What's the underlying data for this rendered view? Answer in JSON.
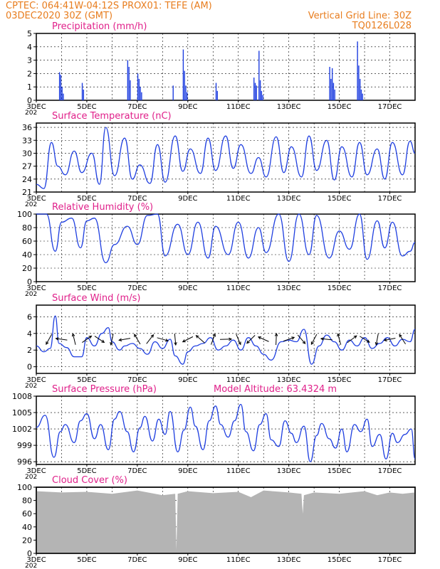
{
  "header": {
    "station": "CPTEC:   064:41W-04:12S   PROX01: TEFE (AM)",
    "date": "03DEC2020 30Z (GMT)",
    "grid_note": "Vertical Grid Line: 30Z",
    "run_code": "TQ0126L028"
  },
  "colors": {
    "header": "#e87d1e",
    "title": "#e0208a",
    "series": "#1f3fe0",
    "bars": "#1f3fe0",
    "cloud": "#b4b4b4",
    "axis": "#000000",
    "grid": "#000000"
  },
  "x_axis": {
    "range": [
      "03DEC",
      "18DEC"
    ],
    "tick_labels": [
      "3DEC",
      "5DEC",
      "7DEC",
      "9DEC",
      "11DEC",
      "13DEC",
      "15DEC",
      "17DEC"
    ],
    "clipped_year_label": "202"
  },
  "chart_data": [
    {
      "id": "precip",
      "type": "bar",
      "title": "Precipitation (mm/h)",
      "ylim": [
        0,
        5
      ],
      "yticks": [
        "0",
        "1",
        "2",
        "3",
        "4",
        "5"
      ],
      "grid": true,
      "events": [
        {
          "day": 3.9,
          "values": [
            2.1,
            1.9,
            1.0,
            0.5
          ]
        },
        {
          "day": 4.8,
          "values": [
            1.3,
            0.8
          ]
        },
        {
          "day": 6.6,
          "values": [
            3.0,
            2.5,
            1.5
          ]
        },
        {
          "day": 7.0,
          "values": [
            2.0,
            1.6,
            1.0,
            0.6
          ]
        },
        {
          "day": 8.4,
          "values": [
            1.1
          ]
        },
        {
          "day": 8.8,
          "values": [
            3.8,
            2.2,
            1.1,
            0.6
          ]
        },
        {
          "day": 10.1,
          "values": [
            1.3,
            0.7
          ]
        },
        {
          "day": 11.6,
          "values": [
            1.7,
            1.3,
            1.1
          ]
        },
        {
          "day": 11.8,
          "values": [
            3.7,
            1.5,
            0.7,
            0.4
          ]
        },
        {
          "day": 14.6,
          "values": [
            2.5,
            1.6,
            2.4,
            1.3,
            0.8
          ]
        },
        {
          "day": 15.7,
          "values": [
            4.4,
            2.6,
            1.6,
            0.8,
            0.5
          ]
        }
      ]
    },
    {
      "id": "temp",
      "type": "line",
      "title": "Surface Temperature (nC)",
      "ylim": [
        21,
        37
      ],
      "yticks": [
        "21",
        "24",
        "27",
        "30",
        "33",
        "36"
      ],
      "grid": true,
      "x": [
        3,
        3.3,
        3.6,
        3.85,
        4.15,
        4.5,
        4.8,
        5.2,
        5.5,
        5.75,
        6.1,
        6.5,
        6.8,
        7.1,
        7.5,
        7.8,
        8.1,
        8.5,
        8.8,
        9.1,
        9.5,
        9.8,
        10.1,
        10.5,
        10.8,
        11.1,
        11.5,
        11.8,
        12.1,
        12.5,
        12.8,
        13.1,
        13.5,
        13.8,
        14.1,
        14.5,
        14.8,
        15.1,
        15.5,
        15.8,
        16.1,
        16.5,
        16.8,
        17.1,
        17.5,
        17.8,
        18.0
      ],
      "values": [
        22.8,
        21.8,
        32.5,
        27,
        25,
        30.5,
        25.5,
        30,
        22.8,
        36,
        24.8,
        33.5,
        24,
        27.3,
        23,
        32,
        23.3,
        34,
        25.8,
        31,
        25.3,
        33.5,
        26,
        34,
        26.5,
        32,
        25.3,
        29,
        24.5,
        33.8,
        25.5,
        31.5,
        24.5,
        34,
        26,
        33,
        23.8,
        31.5,
        24.5,
        32.5,
        25,
        31,
        24,
        32.5,
        25,
        32.8,
        30
      ]
    },
    {
      "id": "rh",
      "type": "line",
      "title": "Relative Humidity (%)",
      "ylim": [
        0,
        100
      ],
      "yticks": [
        "0",
        "20",
        "40",
        "60",
        "80",
        "100"
      ],
      "grid": true,
      "x": [
        3,
        3.4,
        3.75,
        4.0,
        4.4,
        4.75,
        5.0,
        5.3,
        5.75,
        6.1,
        6.6,
        7.0,
        7.4,
        7.8,
        8.1,
        8.6,
        9.0,
        9.4,
        9.8,
        10.1,
        10.6,
        11.0,
        11.4,
        11.8,
        12.1,
        12.6,
        13.0,
        13.4,
        13.8,
        14.1,
        14.6,
        15.0,
        15.4,
        15.8,
        16.1,
        16.5,
        16.8,
        17.1,
        17.5,
        17.8,
        18.0
      ],
      "values": [
        100,
        100,
        45,
        88,
        94,
        50,
        90,
        94,
        28,
        55,
        82,
        55,
        98,
        100,
        38,
        85,
        40,
        88,
        35,
        82,
        40,
        88,
        35,
        80,
        43,
        100,
        30,
        100,
        40,
        98,
        35,
        75,
        48,
        100,
        33,
        90,
        50,
        88,
        38,
        45,
        58
      ]
    },
    {
      "id": "wind",
      "type": "line",
      "title": "Surface Wind (m/s)",
      "ylim": [
        -0.8,
        7.4
      ],
      "yticks": [
        "0",
        "2",
        "4",
        "6"
      ],
      "grid": true,
      "x": [
        3,
        3.3,
        3.55,
        3.75,
        3.9,
        4.2,
        4.5,
        4.8,
        5.0,
        5.3,
        5.6,
        5.85,
        6.0,
        6.3,
        6.5,
        6.8,
        7.1,
        7.4,
        7.7,
        8.0,
        8.3,
        8.5,
        8.8,
        9.0,
        9.3,
        9.6,
        9.9,
        10.2,
        10.5,
        10.8,
        11.1,
        11.4,
        11.7,
        12.0,
        12.3,
        12.7,
        13.0,
        13.3,
        13.6,
        13.9,
        14.2,
        14.5,
        14.8,
        15.1,
        15.4,
        15.7,
        16.0,
        16.3,
        16.6,
        16.9,
        17.2,
        17.5,
        17.8,
        18.0
      ],
      "values": [
        2.5,
        1.8,
        2.2,
        6.1,
        2.8,
        2.3,
        1.2,
        1.2,
        3.5,
        2.5,
        4.0,
        4.7,
        3.0,
        2.0,
        2.5,
        2.8,
        2.2,
        1.5,
        3.0,
        2.2,
        3.3,
        1.3,
        0.3,
        1.8,
        2.5,
        2.8,
        3.5,
        2.0,
        2.5,
        3.2,
        2.0,
        3.5,
        2.5,
        1.5,
        0.8,
        3.0,
        3.2,
        3.0,
        4.5,
        0.3,
        2.5,
        3.8,
        3.0,
        2.0,
        3.2,
        2.5,
        3.5,
        2.2,
        2.8,
        3.5,
        2.5,
        3.3,
        3.0,
        4.5
      ]
    },
    {
      "id": "pressure",
      "type": "line",
      "title": "Surface Pressure (hPa)",
      "subtitle": "Model Altitude: 63.4324 m",
      "ylim": [
        995.5,
        1008
      ],
      "yticks": [
        "996",
        "999",
        "1002",
        "1005",
        "1008"
      ],
      "grid": true,
      "x": [
        3,
        3.35,
        3.7,
        3.95,
        4.15,
        4.5,
        4.75,
        5.0,
        5.3,
        5.55,
        5.85,
        6.1,
        6.3,
        6.6,
        6.85,
        7.1,
        7.3,
        7.6,
        7.85,
        8.1,
        8.3,
        8.6,
        8.85,
        9.1,
        9.3,
        9.6,
        9.85,
        10.1,
        10.3,
        10.6,
        10.85,
        11.1,
        11.3,
        11.6,
        11.85,
        12.1,
        12.3,
        12.6,
        12.85,
        13.1,
        13.3,
        13.6,
        13.85,
        14.1,
        14.3,
        14.6,
        14.85,
        15.1,
        15.3,
        15.6,
        15.85,
        16.1,
        16.3,
        16.6,
        16.85,
        17.1,
        17.3,
        17.6,
        17.85,
        18.0
      ],
      "values": [
        1002.3,
        1004.5,
        996.8,
        1001.5,
        1002.8,
        999.5,
        1003.5,
        1004.8,
        1000.2,
        1002.8,
        998.2,
        1003.8,
        1005.2,
        1001.5,
        997.8,
        1002.2,
        1004.3,
        999.8,
        1003.8,
        1001.0,
        1005.2,
        997.8,
        1001.8,
        1006.0,
        1002.5,
        998.2,
        1003.5,
        1006.2,
        1002.8,
        1000.5,
        1003.5,
        1006.5,
        1001.5,
        998.0,
        1002.8,
        1004.8,
        1000.0,
        998.8,
        1003.5,
        1001.2,
        999.5,
        1002.5,
        996.0,
        1000.8,
        1003.0,
        1000.2,
        998.5,
        1002.0,
        997.8,
        1002.8,
        1001.5,
        1003.8,
        998.8,
        1001.0,
        996.5,
        1001.2,
        999.5,
        1001.0,
        1002.0,
        996.5
      ]
    },
    {
      "id": "cloud",
      "type": "area",
      "title": "Cloud Cover (%)",
      "ylim": [
        0,
        100
      ],
      "yticks": [
        "0",
        "20",
        "40",
        "60",
        "80",
        "100"
      ],
      "grid": true,
      "x": [
        3,
        4,
        5,
        6,
        7,
        8,
        8.5,
        8.55,
        8.6,
        9,
        10,
        11,
        11.5,
        12,
        13,
        13.5,
        13.55,
        13.6,
        14,
        15,
        16,
        16.5,
        17,
        17.5,
        18
      ],
      "values": [
        94,
        92,
        93,
        90,
        95,
        88,
        90,
        5,
        90,
        94,
        91,
        93,
        85,
        95,
        92,
        90,
        60,
        88,
        92,
        90,
        94,
        88,
        92,
        90,
        92
      ]
    }
  ]
}
